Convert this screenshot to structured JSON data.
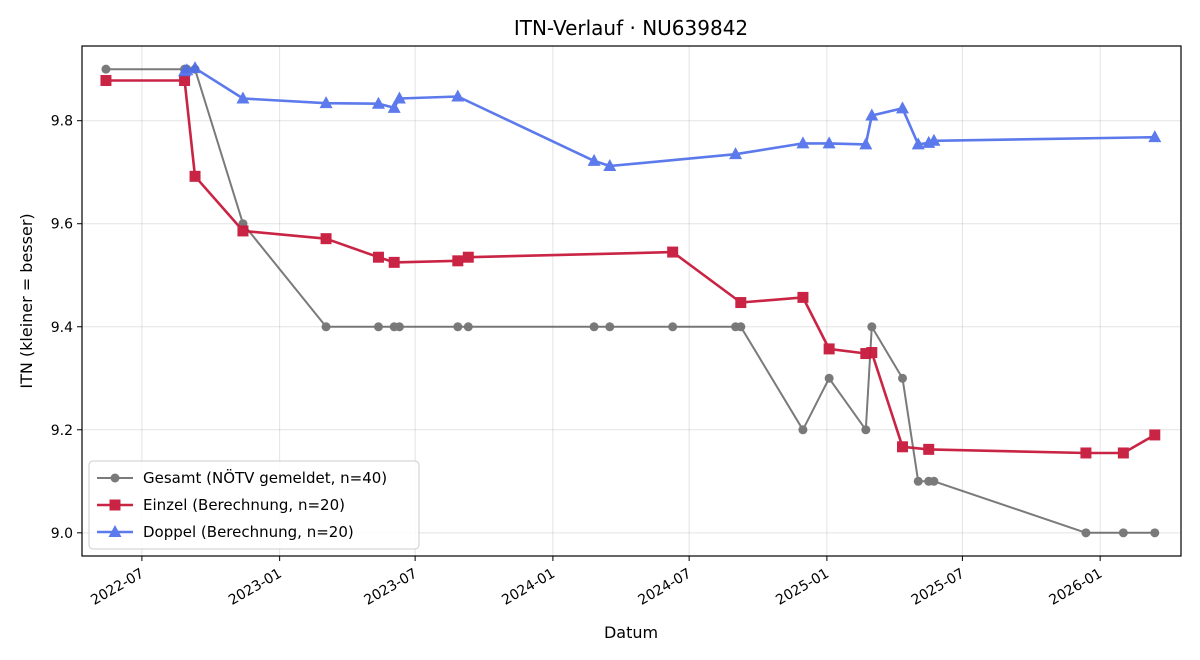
{
  "chart_data": {
    "type": "line",
    "title": "ITN-Verlauf · NU639842",
    "xlabel": "Datum",
    "ylabel": "ITN  (kleiner = besser)",
    "ylim": [
      8.955,
      9.945
    ],
    "xlim": [
      "2022-04-12",
      "2026-04-19"
    ],
    "grid": true,
    "legend": "lower-left",
    "y_ticks": [
      9.0,
      9.2,
      9.4,
      9.6,
      9.8
    ],
    "y_tick_labels": [
      "9.0",
      "9.2",
      "9.4",
      "9.6",
      "9.8"
    ],
    "x_ticks": [
      "2022-07-01",
      "2023-01-01",
      "2023-07-01",
      "2024-01-01",
      "2024-07-01",
      "2025-01-01",
      "2025-07-01",
      "2026-01-01"
    ],
    "x_tick_labels": [
      "2022-07",
      "2023-01",
      "2023-07",
      "2024-01",
      "2024-07",
      "2025-01",
      "2025-07",
      "2026-01"
    ],
    "series": [
      {
        "name": "Gesamt (NÖTV gemeldet, n=40)",
        "color": "#555555",
        "marker": "circle",
        "x": [
          "2022-05-14",
          "2022-08-27",
          "2022-08-30",
          "2022-09-10",
          "2022-11-13",
          "2023-03-04",
          "2023-05-13",
          "2023-06-03",
          "2023-06-10",
          "2023-08-27",
          "2023-09-10",
          "2024-02-25",
          "2024-03-17",
          "2024-06-09",
          "2024-09-01",
          "2024-09-08",
          "2024-11-30",
          "2025-01-04",
          "2025-02-22",
          "2025-03-02",
          "2025-04-12",
          "2025-05-03",
          "2025-05-17",
          "2025-05-24",
          "2025-12-13",
          "2026-02-01",
          "2026-03-15"
        ],
        "y": [
          9.9,
          9.9,
          9.9,
          9.9,
          9.6,
          9.4,
          9.4,
          9.4,
          9.4,
          9.4,
          9.4,
          9.4,
          9.4,
          9.4,
          9.4,
          9.4,
          9.2,
          9.3,
          9.2,
          9.4,
          9.3,
          9.1,
          9.1,
          9.1,
          9.0,
          9.0,
          9.0
        ]
      },
      {
        "name": "Einzel (Berechnung, n=20)",
        "color": "#c8193c",
        "marker": "square",
        "x": [
          "2022-05-14",
          "2022-08-27",
          "2022-09-10",
          "2022-11-13",
          "2023-03-04",
          "2023-05-13",
          "2023-06-03",
          "2023-08-27",
          "2023-09-10",
          "2024-06-09",
          "2024-09-08",
          "2024-11-30",
          "2025-01-04",
          "2025-02-22",
          "2025-03-02",
          "2025-04-12",
          "2025-05-17",
          "2025-12-13",
          "2026-02-01",
          "2026-03-15"
        ],
        "y": [
          9.878,
          9.878,
          9.692,
          9.586,
          9.571,
          9.535,
          9.525,
          9.528,
          9.535,
          9.545,
          9.447,
          9.457,
          9.357,
          9.348,
          9.35,
          9.167,
          9.162,
          9.155,
          9.155,
          9.19
        ]
      },
      {
        "name": "Doppel (Berechnung, n=20)",
        "color": "#4f6fea",
        "marker": "triangle",
        "x": [
          "2022-08-27",
          "2022-08-30",
          "2022-09-10",
          "2022-11-13",
          "2023-03-04",
          "2023-05-13",
          "2023-06-03",
          "2023-06-10",
          "2023-08-27",
          "2024-02-25",
          "2024-03-17",
          "2024-09-01",
          "2024-11-30",
          "2025-01-04",
          "2025-02-22",
          "2025-03-02",
          "2025-04-12",
          "2025-05-03",
          "2025-05-17",
          "2025-05-24",
          "2026-03-15"
        ],
        "y": [
          9.896,
          9.898,
          9.902,
          9.843,
          9.834,
          9.833,
          9.825,
          9.843,
          9.847,
          9.722,
          9.712,
          9.735,
          9.756,
          9.756,
          9.754,
          9.81,
          9.824,
          9.754,
          9.757,
          9.761,
          9.768
        ]
      }
    ]
  }
}
